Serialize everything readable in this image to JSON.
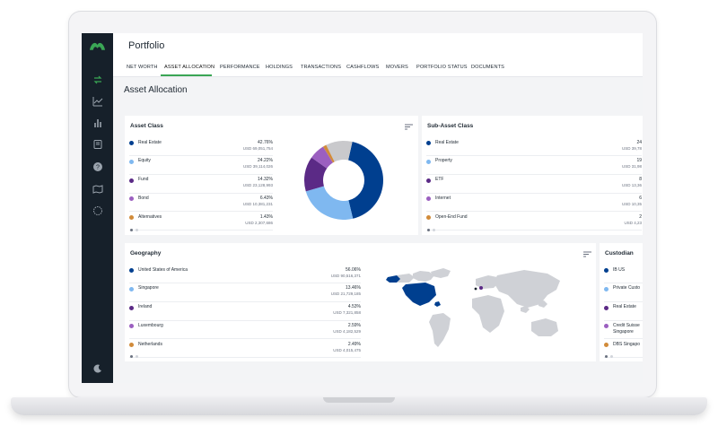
{
  "app": {
    "page_title": "Portfolio",
    "section_title": "Asset Allocation"
  },
  "tabs": [
    {
      "label": "NET WORTH"
    },
    {
      "label": "ASSET ALLOCATION",
      "active": true
    },
    {
      "label": "PERFORMANCE"
    },
    {
      "label": "HOLDINGS"
    },
    {
      "label": "TRANSACTIONS"
    },
    {
      "label": "CASHFLOWS"
    },
    {
      "label": "MOVERS"
    },
    {
      "label": "PORTFOLIO STATUS"
    },
    {
      "label": "DOCUMENTS"
    }
  ],
  "colors": {
    "accent": "#3aa655",
    "rail": "#16202a",
    "c1": "#003f8f",
    "c2": "#7fb8f0",
    "c3": "#5b2a86",
    "c4": "#9b5fc0",
    "c5": "#d18b3a",
    "c6": "#c9c9cc"
  },
  "rail_icons": [
    "logo-icon",
    "transfer-icon",
    "line-chart-icon",
    "bar-chart-icon",
    "book-icon",
    "help-icon",
    "map-icon",
    "globe-icon",
    "moon-icon"
  ],
  "asset_class": {
    "title": "Asset Class",
    "rows": [
      {
        "label": "Real Estate",
        "pct": "42.76%",
        "amount": "USD 69,051,754",
        "color": "#003f8f"
      },
      {
        "label": "Equity",
        "pct": "24.22%",
        "amount": "USD 39,114,026",
        "color": "#7fb8f0"
      },
      {
        "label": "Fund",
        "pct": "14.32%",
        "amount": "USD 23,128,993",
        "color": "#5b2a86"
      },
      {
        "label": "Bond",
        "pct": "6.43%",
        "amount": "USD 10,381,231",
        "color": "#9b5fc0"
      },
      {
        "label": "Alternatives",
        "pct": "1.43%",
        "amount": "USD 2,307,686",
        "color": "#d18b3a"
      }
    ]
  },
  "sub_asset_class": {
    "title": "Sub-Asset Class",
    "rows": [
      {
        "label": "Real Estate",
        "pct": "24",
        "amount": "USD 39,78",
        "color": "#003f8f"
      },
      {
        "label": "Property",
        "pct": "19",
        "amount": "USD 31,98",
        "color": "#7fb8f0"
      },
      {
        "label": "ETF",
        "pct": "8",
        "amount": "USD 13,36",
        "color": "#5b2a86"
      },
      {
        "label": "Internet",
        "pct": "6",
        "amount": "USD 10,35",
        "color": "#9b5fc0"
      },
      {
        "label": "Open-End Fund",
        "pct": "2",
        "amount": "USD 4,23",
        "color": "#d18b3a"
      }
    ]
  },
  "geography": {
    "title": "Geography",
    "rows": [
      {
        "label": "United States of America",
        "pct": "56.06%",
        "amount": "USD 90,516,371",
        "color": "#003f8f"
      },
      {
        "label": "Singapore",
        "pct": "13.46%",
        "amount": "USD 21,729,185",
        "color": "#7fb8f0"
      },
      {
        "label": "Ireland",
        "pct": "4.53%",
        "amount": "USD 7,321,858",
        "color": "#5b2a86"
      },
      {
        "label": "Luxembourg",
        "pct": "2.59%",
        "amount": "USD 4,182,529",
        "color": "#9b5fc0"
      },
      {
        "label": "Netherlands",
        "pct": "2.49%",
        "amount": "USD 4,015,475",
        "color": "#d18b3a"
      }
    ]
  },
  "custodian": {
    "title": "Custodian",
    "rows": [
      {
        "label": "IB US",
        "label2": "",
        "color": "#003f8f"
      },
      {
        "label": "Private Custo",
        "label2": "",
        "color": "#7fb8f0"
      },
      {
        "label": "Real Estate",
        "label2": "",
        "color": "#5b2a86"
      },
      {
        "label": "Credit Suisse",
        "label2": "Singapore",
        "color": "#9b5fc0"
      },
      {
        "label": "DBS Singapo",
        "label2": "",
        "color": "#d18b3a"
      }
    ]
  },
  "chart_data": {
    "type": "pie",
    "categories": [
      "Real Estate",
      "Equity",
      "Fund",
      "Bond",
      "Alternatives"
    ],
    "values": [
      42.76,
      24.22,
      14.32,
      6.43,
      1.43
    ]
  }
}
